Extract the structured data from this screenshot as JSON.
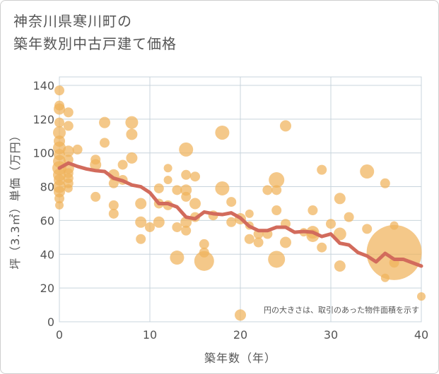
{
  "title_line1": "神奈川県寒川町の",
  "title_line2": "築年数別中古戸建て価格",
  "chart_data": {
    "type": "scatter",
    "title": "神奈川県寒川町の 築年数別中古戸建て価格",
    "xlabel": "築年数（年）",
    "ylabel": "坪（3.3㎡）単価（万円）",
    "xlim": [
      0,
      40
    ],
    "ylim": [
      0,
      145
    ],
    "xticks": [
      0,
      10,
      20,
      30,
      40
    ],
    "yticks": [
      0,
      20,
      40,
      60,
      80,
      100,
      120,
      140
    ],
    "grid": true,
    "annotation": "円の大きさは、取引のあった物件面積を示す",
    "colors": {
      "bubble": "#f0b35c",
      "trend": "#d26b5c",
      "grid": "#c8d4dc"
    },
    "series": [
      {
        "type": "bubble",
        "points": [
          {
            "x": 0,
            "y": 137,
            "s": 7
          },
          {
            "x": 0,
            "y": 126,
            "s": 8
          },
          {
            "x": 0,
            "y": 118,
            "s": 7
          },
          {
            "x": 0,
            "y": 112,
            "s": 9
          },
          {
            "x": 0,
            "y": 107,
            "s": 8
          },
          {
            "x": 0,
            "y": 103,
            "s": 9
          },
          {
            "x": 0,
            "y": 99,
            "s": 8
          },
          {
            "x": 0,
            "y": 95,
            "s": 9
          },
          {
            "x": 0,
            "y": 91,
            "s": 10
          },
          {
            "x": 0,
            "y": 87,
            "s": 9
          },
          {
            "x": 0,
            "y": 84,
            "s": 8
          },
          {
            "x": 0,
            "y": 80,
            "s": 9
          },
          {
            "x": 0,
            "y": 77,
            "s": 8
          },
          {
            "x": 0,
            "y": 73,
            "s": 7
          },
          {
            "x": 0,
            "y": 69,
            "s": 6
          },
          {
            "x": 0,
            "y": 128,
            "s": 7
          },
          {
            "x": 1,
            "y": 124,
            "s": 7
          },
          {
            "x": 1,
            "y": 116,
            "s": 7
          },
          {
            "x": 1,
            "y": 101,
            "s": 8
          },
          {
            "x": 1,
            "y": 96,
            "s": 7
          },
          {
            "x": 1,
            "y": 91,
            "s": 8
          },
          {
            "x": 1,
            "y": 88,
            "s": 7
          },
          {
            "x": 1,
            "y": 85,
            "s": 7
          },
          {
            "x": 1,
            "y": 82,
            "s": 7
          },
          {
            "x": 1,
            "y": 79,
            "s": 6
          },
          {
            "x": 2,
            "y": 102,
            "s": 7
          },
          {
            "x": 4,
            "y": 96,
            "s": 7
          },
          {
            "x": 4,
            "y": 93,
            "s": 8
          },
          {
            "x": 4,
            "y": 74,
            "s": 7
          },
          {
            "x": 5,
            "y": 118,
            "s": 8
          },
          {
            "x": 5,
            "y": 106,
            "s": 7
          },
          {
            "x": 6,
            "y": 87,
            "s": 8
          },
          {
            "x": 6,
            "y": 82,
            "s": 7
          },
          {
            "x": 6,
            "y": 69,
            "s": 7
          },
          {
            "x": 6,
            "y": 64,
            "s": 7
          },
          {
            "x": 7,
            "y": 93,
            "s": 7
          },
          {
            "x": 7,
            "y": 84,
            "s": 7
          },
          {
            "x": 8,
            "y": 118,
            "s": 9
          },
          {
            "x": 8,
            "y": 111,
            "s": 8
          },
          {
            "x": 8,
            "y": 97,
            "s": 8
          },
          {
            "x": 9,
            "y": 70,
            "s": 8
          },
          {
            "x": 9,
            "y": 59,
            "s": 8
          },
          {
            "x": 9,
            "y": 49,
            "s": 7
          },
          {
            "x": 10,
            "y": 56,
            "s": 7
          },
          {
            "x": 11,
            "y": 79,
            "s": 7
          },
          {
            "x": 11,
            "y": 70,
            "s": 7
          },
          {
            "x": 11,
            "y": 59,
            "s": 8
          },
          {
            "x": 12,
            "y": 91,
            "s": 6
          },
          {
            "x": 12,
            "y": 84,
            "s": 6
          },
          {
            "x": 12,
            "y": 69,
            "s": 7
          },
          {
            "x": 13,
            "y": 78,
            "s": 7
          },
          {
            "x": 13,
            "y": 56,
            "s": 7
          },
          {
            "x": 13,
            "y": 38,
            "s": 10
          },
          {
            "x": 14,
            "y": 102,
            "s": 10
          },
          {
            "x": 14,
            "y": 87,
            "s": 7
          },
          {
            "x": 14,
            "y": 78,
            "s": 8
          },
          {
            "x": 14,
            "y": 74,
            "s": 7
          },
          {
            "x": 14,
            "y": 59,
            "s": 8
          },
          {
            "x": 14,
            "y": 54,
            "s": 7
          },
          {
            "x": 15,
            "y": 86,
            "s": 7
          },
          {
            "x": 15,
            "y": 70,
            "s": 8
          },
          {
            "x": 15,
            "y": 62,
            "s": 7
          },
          {
            "x": 16,
            "y": 46,
            "s": 7
          },
          {
            "x": 16,
            "y": 41,
            "s": 7
          },
          {
            "x": 16,
            "y": 36,
            "s": 14
          },
          {
            "x": 17,
            "y": 63,
            "s": 7
          },
          {
            "x": 18,
            "y": 112,
            "s": 10
          },
          {
            "x": 18,
            "y": 79,
            "s": 10
          },
          {
            "x": 19,
            "y": 71,
            "s": 7
          },
          {
            "x": 19,
            "y": 59,
            "s": 7
          },
          {
            "x": 20,
            "y": 61,
            "s": 8
          },
          {
            "x": 20,
            "y": 4,
            "s": 8
          },
          {
            "x": 21,
            "y": 64,
            "s": 6
          },
          {
            "x": 21,
            "y": 57,
            "s": 6
          },
          {
            "x": 21,
            "y": 49,
            "s": 7
          },
          {
            "x": 22,
            "y": 52,
            "s": 7
          },
          {
            "x": 22,
            "y": 47,
            "s": 7
          },
          {
            "x": 23,
            "y": 78,
            "s": 7
          },
          {
            "x": 23,
            "y": 52,
            "s": 7
          },
          {
            "x": 24,
            "y": 84,
            "s": 11
          },
          {
            "x": 24,
            "y": 78,
            "s": 7
          },
          {
            "x": 24,
            "y": 66,
            "s": 7
          },
          {
            "x": 24,
            "y": 37,
            "s": 12
          },
          {
            "x": 25,
            "y": 116,
            "s": 8
          },
          {
            "x": 25,
            "y": 58,
            "s": 7
          },
          {
            "x": 25,
            "y": 47,
            "s": 8
          },
          {
            "x": 27,
            "y": 53,
            "s": 6
          },
          {
            "x": 28,
            "y": 66,
            "s": 7
          },
          {
            "x": 28,
            "y": 53,
            "s": 9
          },
          {
            "x": 28,
            "y": 51,
            "s": 9
          },
          {
            "x": 29,
            "y": 90,
            "s": 7
          },
          {
            "x": 29,
            "y": 44,
            "s": 7
          },
          {
            "x": 30,
            "y": 58,
            "s": 7
          },
          {
            "x": 31,
            "y": 73,
            "s": 8
          },
          {
            "x": 31,
            "y": 52,
            "s": 9
          },
          {
            "x": 31,
            "y": 33,
            "s": 8
          },
          {
            "x": 32,
            "y": 62,
            "s": 7
          },
          {
            "x": 34,
            "y": 89,
            "s": 10
          },
          {
            "x": 34,
            "y": 55,
            "s": 7
          },
          {
            "x": 36,
            "y": 82,
            "s": 7
          },
          {
            "x": 36,
            "y": 26,
            "s": 6
          },
          {
            "x": 37,
            "y": 57,
            "s": 6
          },
          {
            "x": 37,
            "y": 35,
            "s": 7
          },
          {
            "x": 37,
            "y": 41,
            "s": 39
          },
          {
            "x": 40,
            "y": 15,
            "s": 6
          }
        ]
      },
      {
        "type": "line",
        "x": [
          0,
          1,
          2,
          3,
          4,
          5,
          6,
          7,
          8,
          9,
          10,
          11,
          12,
          13,
          14,
          15,
          16,
          17,
          18,
          19,
          20,
          21,
          22,
          23,
          24,
          25,
          26,
          27,
          28,
          29,
          30,
          31,
          32,
          33,
          34,
          35,
          36,
          37,
          38,
          39,
          40
        ],
        "y": [
          91,
          94,
          92,
          90.5,
          89.5,
          89,
          85,
          83.5,
          81,
          80,
          76.5,
          70,
          70,
          68,
          62,
          61,
          65,
          64,
          63.5,
          64.5,
          61.5,
          56.5,
          54,
          54,
          56,
          56,
          53,
          53.5,
          53,
          50.5,
          52,
          46.5,
          45.5,
          41,
          39,
          35.5,
          40.5,
          37,
          37,
          35,
          33
        ]
      }
    ]
  }
}
